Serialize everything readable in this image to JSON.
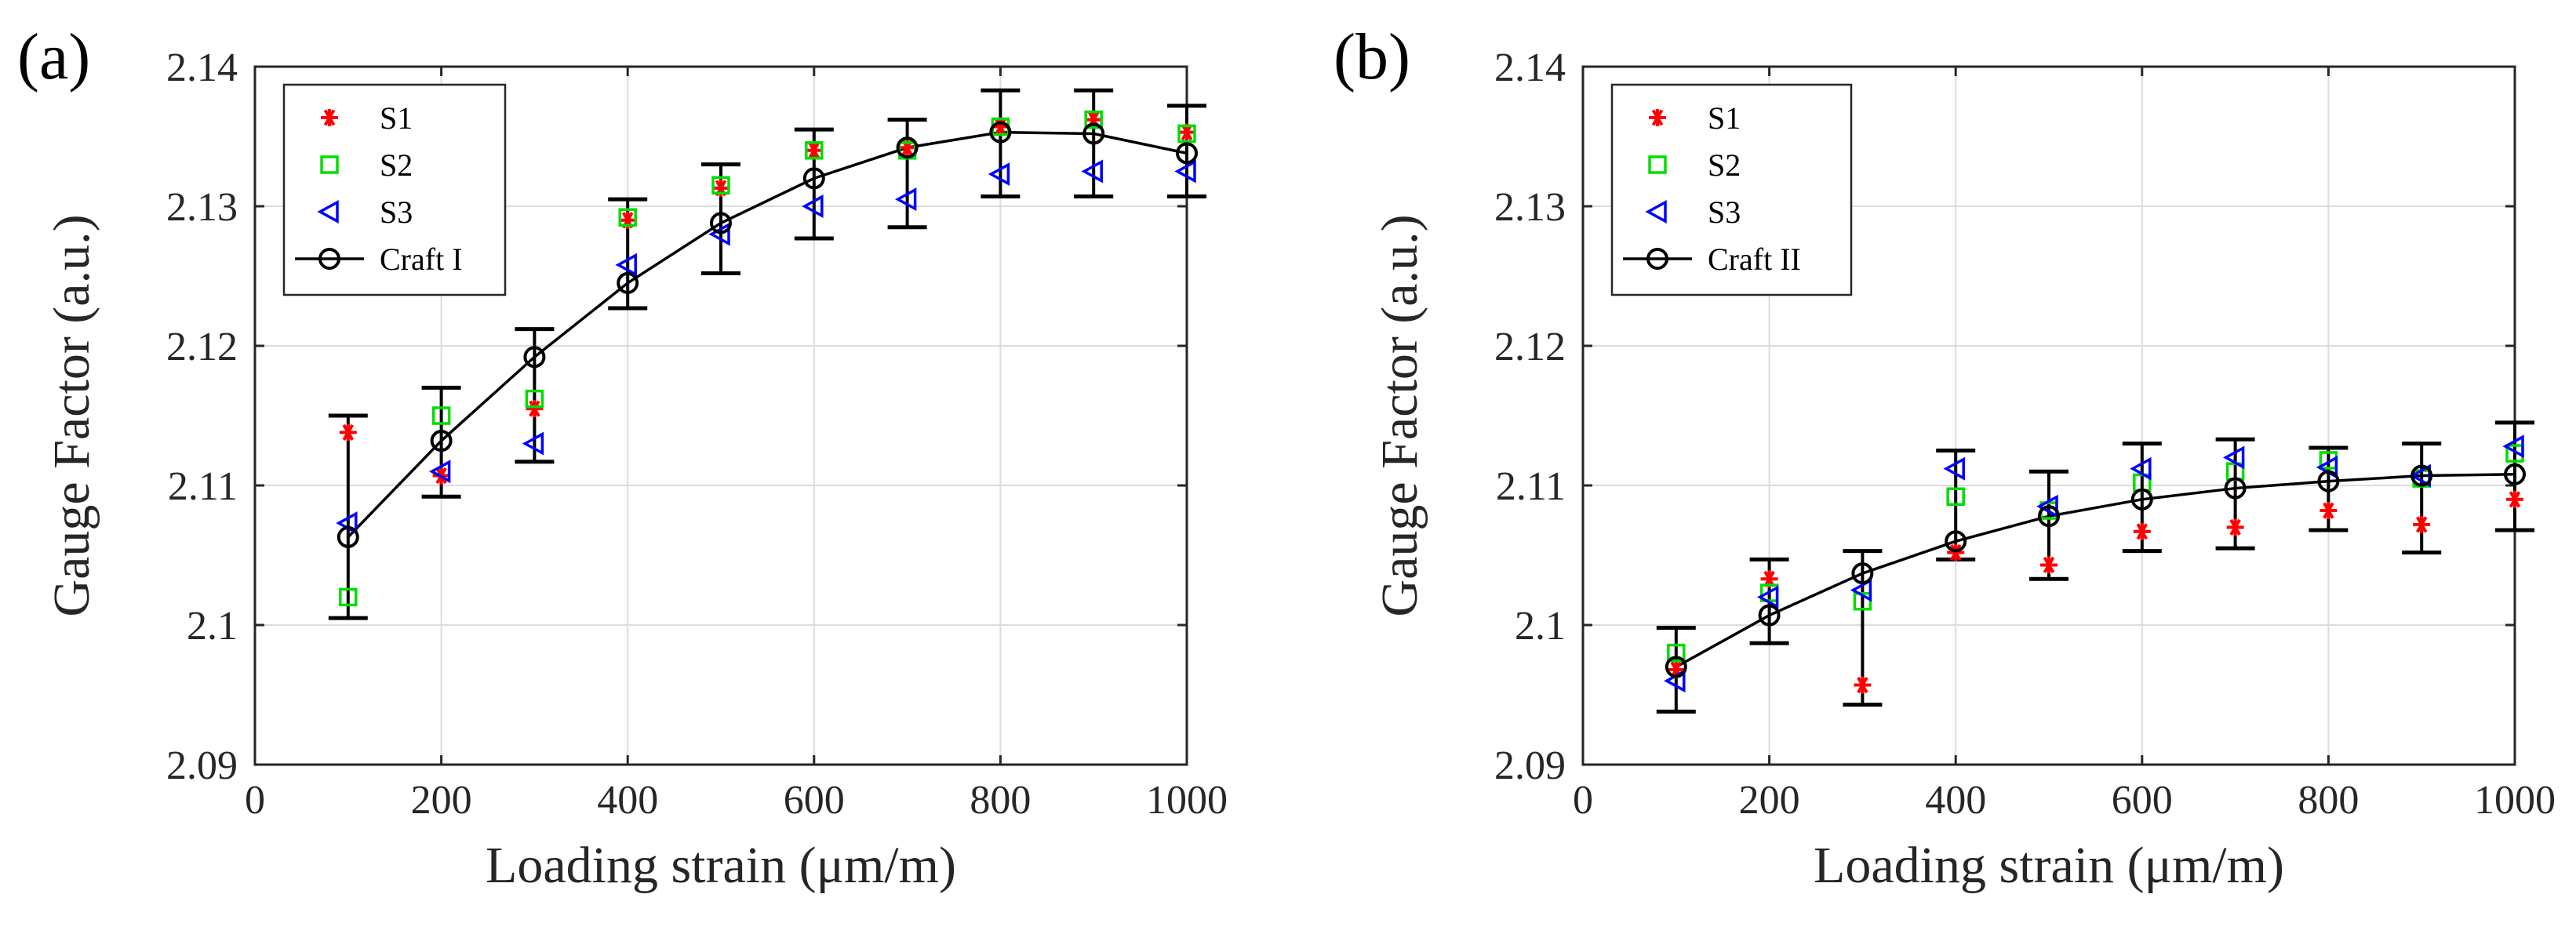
{
  "chart_data": [
    {
      "type": "scatter",
      "panel_label": "(a)",
      "xlabel": "Loading strain (μm/m)",
      "ylabel": "Gauge Factor (a.u.)",
      "xlim": [
        0,
        1000
      ],
      "ylim": [
        2.09,
        2.14
      ],
      "xticks": [
        0,
        200,
        400,
        600,
        800,
        1000
      ],
      "yticks": [
        2.09,
        2.1,
        2.11,
        2.12,
        2.13,
        2.14
      ],
      "ytick_labels": [
        "2.09",
        "2.1",
        "2.11",
        "2.12",
        "2.13",
        "2.14"
      ],
      "grid": true,
      "legend_position": "top-left",
      "x": [
        100,
        200,
        300,
        400,
        500,
        600,
        700,
        800,
        900,
        1000
      ],
      "series": [
        {
          "name": "S1",
          "marker": "asterisk",
          "color": "#ff0000",
          "values": [
            2.1138,
            2.1107,
            2.1155,
            2.129,
            2.1313,
            2.134,
            2.1342,
            2.1357,
            2.1362,
            2.1353
          ]
        },
        {
          "name": "S2",
          "marker": "square",
          "color": "#00dd00",
          "values": [
            2.102,
            2.115,
            2.1162,
            2.1292,
            2.1315,
            2.134,
            2.134,
            2.1357,
            2.1362,
            2.1352
          ]
        },
        {
          "name": "S3",
          "marker": "triangle-left",
          "color": "#0000ff",
          "values": [
            2.1073,
            2.111,
            2.113,
            2.1258,
            2.128,
            2.13,
            2.1305,
            2.1323,
            2.1325,
            2.1325
          ]
        },
        {
          "name": "Craft I",
          "marker": "circle-line",
          "color": "#000000",
          "values": [
            2.1063,
            2.1132,
            2.1192,
            2.1245,
            2.1288,
            2.132,
            2.1342,
            2.1353,
            2.1352,
            2.1338
          ],
          "error_low": [
            2.1005,
            2.1092,
            2.1117,
            2.1227,
            2.1252,
            2.1277,
            2.1285,
            2.1307,
            2.1307,
            2.1307
          ],
          "error_high": [
            2.115,
            2.117,
            2.1212,
            2.1305,
            2.133,
            2.1355,
            2.1362,
            2.1383,
            2.1383,
            2.1372
          ]
        }
      ]
    },
    {
      "type": "scatter",
      "panel_label": "(b)",
      "xlabel": "Loading strain (μm/m)",
      "ylabel": "Gauge Factor (a.u.)",
      "xlim": [
        0,
        1000
      ],
      "ylim": [
        2.09,
        2.14
      ],
      "xticks": [
        0,
        200,
        400,
        600,
        800,
        1000
      ],
      "yticks": [
        2.09,
        2.1,
        2.11,
        2.12,
        2.13,
        2.14
      ],
      "ytick_labels": [
        "2.09",
        "2.1",
        "2.11",
        "2.12",
        "2.13",
        "2.14"
      ],
      "grid": true,
      "legend_position": "top-left",
      "x": [
        100,
        200,
        300,
        400,
        500,
        600,
        700,
        800,
        900,
        1000
      ],
      "series": [
        {
          "name": "S1",
          "marker": "asterisk",
          "color": "#ff0000",
          "values": [
            2.0968,
            2.1033,
            2.0957,
            2.1052,
            2.1043,
            2.1067,
            2.107,
            2.1082,
            2.1072,
            2.109
          ]
        },
        {
          "name": "S2",
          "marker": "square",
          "color": "#00dd00",
          "values": [
            2.098,
            2.1023,
            2.1017,
            2.1092,
            2.1082,
            2.1102,
            2.111,
            2.1118,
            2.1105,
            2.1123
          ]
        },
        {
          "name": "S3",
          "marker": "triangle-left",
          "color": "#0000ff",
          "values": [
            2.096,
            2.102,
            2.1025,
            2.1112,
            2.1085,
            2.1112,
            2.112,
            2.1113,
            2.1107,
            2.1128
          ]
        },
        {
          "name": "Craft II",
          "marker": "circle-line",
          "color": "#000000",
          "values": [
            2.097,
            2.1007,
            2.1037,
            2.106,
            2.1078,
            2.109,
            2.1098,
            2.1103,
            2.1107,
            2.1108
          ],
          "error_low": [
            2.0938,
            2.0987,
            2.0943,
            2.1047,
            2.1033,
            2.1053,
            2.1055,
            2.1068,
            2.1052,
            2.1068
          ],
          "error_high": [
            2.0998,
            2.1047,
            2.1053,
            2.1125,
            2.111,
            2.113,
            2.1133,
            2.1127,
            2.113,
            2.1145
          ]
        }
      ]
    }
  ]
}
